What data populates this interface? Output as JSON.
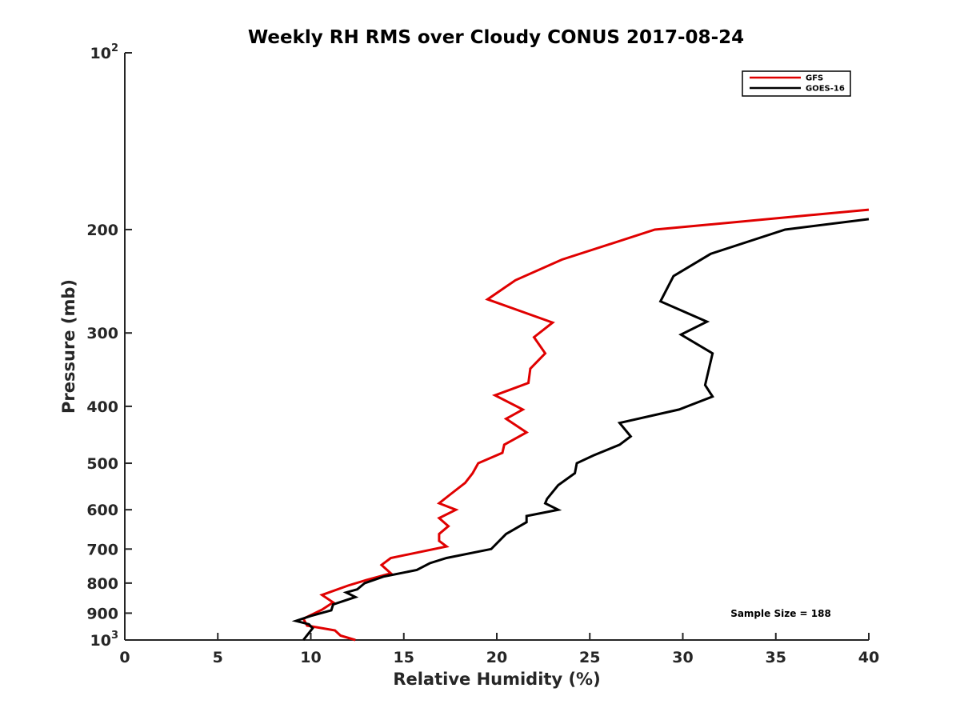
{
  "chart_data": {
    "type": "line",
    "title": "Weekly RH RMS over Cloudy CONUS 2017-08-24",
    "xlabel": "Relative Humidity (%)",
    "ylabel": "Pressure (mb)",
    "xlim": [
      0,
      40
    ],
    "ylim": [
      100,
      1000
    ],
    "y_scale": "log",
    "y_reversed": true,
    "x_ticks": [
      0,
      5,
      10,
      15,
      20,
      25,
      30,
      35,
      40
    ],
    "x_tick_labels": [
      "0",
      "5",
      "10",
      "15",
      "20",
      "25",
      "30",
      "35",
      "40"
    ],
    "y_ticks": [
      100,
      200,
      300,
      400,
      500,
      600,
      700,
      800,
      900,
      1000
    ],
    "y_tick_labels": [
      {
        "base": "10",
        "exp": "2"
      },
      {
        "base": "200",
        "exp": ""
      },
      {
        "base": "300",
        "exp": ""
      },
      {
        "base": "400",
        "exp": ""
      },
      {
        "base": "500",
        "exp": ""
      },
      {
        "base": "600",
        "exp": ""
      },
      {
        "base": "700",
        "exp": ""
      },
      {
        "base": "800",
        "exp": ""
      },
      {
        "base": "900",
        "exp": ""
      },
      {
        "base": "10",
        "exp": "3"
      }
    ],
    "legend_position": "top-right",
    "grid": false,
    "annotation": "Sample Size = 188",
    "series": [
      {
        "name": "GFS",
        "color": "#e00000",
        "points": [
          [
            40.0,
            185
          ],
          [
            28.5,
            200
          ],
          [
            23.5,
            225
          ],
          [
            21.0,
            244
          ],
          [
            19.5,
            263
          ],
          [
            23.0,
            288
          ],
          [
            22.0,
            305
          ],
          [
            22.6,
            325
          ],
          [
            21.8,
            345
          ],
          [
            21.7,
            365
          ],
          [
            19.9,
            383
          ],
          [
            21.4,
            405
          ],
          [
            20.5,
            420
          ],
          [
            21.6,
            443
          ],
          [
            20.4,
            465
          ],
          [
            20.3,
            480
          ],
          [
            19.0,
            500
          ],
          [
            18.7,
            520
          ],
          [
            18.3,
            540
          ],
          [
            17.5,
            565
          ],
          [
            16.9,
            585
          ],
          [
            17.8,
            600
          ],
          [
            16.9,
            620
          ],
          [
            17.4,
            640
          ],
          [
            16.9,
            660
          ],
          [
            16.9,
            678
          ],
          [
            17.3,
            693
          ],
          [
            14.3,
            725
          ],
          [
            13.8,
            745
          ],
          [
            14.3,
            770
          ],
          [
            13.0,
            790
          ],
          [
            12.0,
            808
          ],
          [
            10.6,
            838
          ],
          [
            11.2,
            863
          ],
          [
            10.6,
            888
          ],
          [
            9.6,
            920
          ],
          [
            9.8,
            945
          ],
          [
            11.3,
            963
          ],
          [
            11.6,
            983
          ],
          [
            12.4,
            1000
          ]
        ]
      },
      {
        "name": "GOES-16",
        "color": "#000000",
        "points": [
          [
            40.0,
            192
          ],
          [
            35.5,
            200
          ],
          [
            31.5,
            220
          ],
          [
            29.5,
            240
          ],
          [
            28.8,
            265
          ],
          [
            31.3,
            287
          ],
          [
            29.9,
            302
          ],
          [
            31.6,
            325
          ],
          [
            31.2,
            368
          ],
          [
            31.6,
            385
          ],
          [
            29.8,
            405
          ],
          [
            26.6,
            427
          ],
          [
            27.2,
            450
          ],
          [
            26.6,
            465
          ],
          [
            25.2,
            485
          ],
          [
            24.3,
            500
          ],
          [
            24.2,
            520
          ],
          [
            23.3,
            545
          ],
          [
            22.7,
            575
          ],
          [
            22.6,
            585
          ],
          [
            23.3,
            600
          ],
          [
            21.6,
            615
          ],
          [
            21.6,
            630
          ],
          [
            20.5,
            660
          ],
          [
            19.7,
            700
          ],
          [
            17.3,
            725
          ],
          [
            16.4,
            740
          ],
          [
            15.7,
            760
          ],
          [
            13.9,
            780
          ],
          [
            12.9,
            800
          ],
          [
            12.5,
            820
          ],
          [
            11.9,
            830
          ],
          [
            12.4,
            845
          ],
          [
            11.2,
            870
          ],
          [
            11.1,
            890
          ],
          [
            10.0,
            910
          ],
          [
            9.2,
            928
          ],
          [
            9.9,
            940
          ],
          [
            10.1,
            955
          ],
          [
            9.6,
            1000
          ]
        ]
      }
    ]
  }
}
